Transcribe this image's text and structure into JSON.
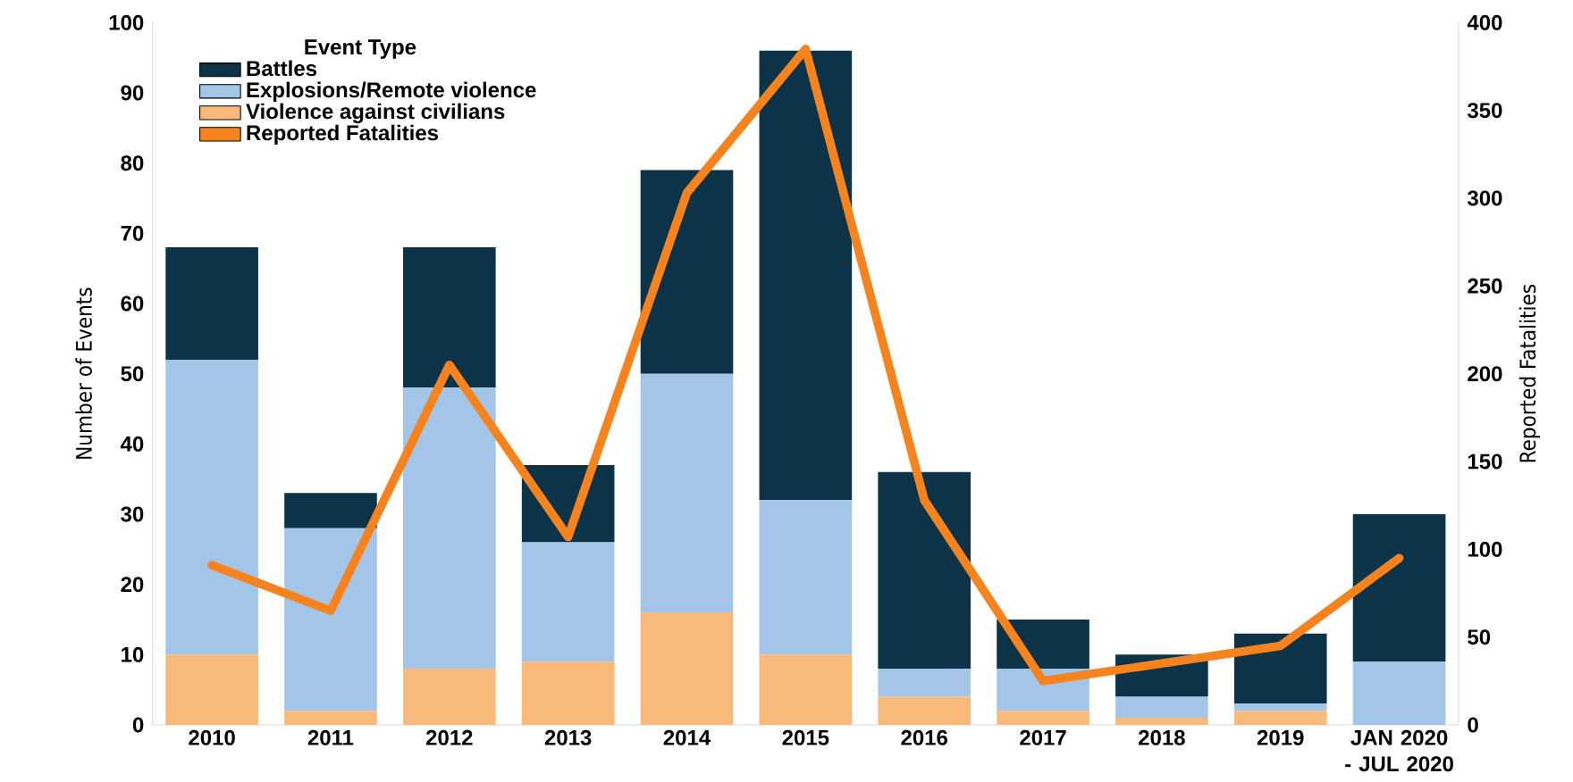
{
  "chart_data": {
    "type": "bar",
    "stacked": true,
    "legend_title": "Event Type",
    "ylabel": "Number of Events",
    "y2label": "Reported Fatalities",
    "categories": [
      "2010",
      "2011",
      "2012",
      "2013",
      "2014",
      "2015",
      "2016",
      "2017",
      "2018",
      "2019",
      "JAN 2020 - JUL 2020"
    ],
    "series": [
      {
        "name": "Violence against civilians",
        "color": "#f9b97a",
        "values": [
          10,
          2,
          8,
          9,
          16,
          10,
          4,
          2,
          1,
          2,
          0
        ]
      },
      {
        "name": "Explosions/Remote violence",
        "color": "#a3c6e8",
        "values": [
          42,
          26,
          40,
          17,
          34,
          22,
          4,
          6,
          3,
          1,
          9
        ]
      },
      {
        "name": "Battles",
        "color": "#0d3349",
        "values": [
          16,
          5,
          20,
          11,
          29,
          64,
          28,
          7,
          6,
          10,
          21
        ]
      },
      {
        "name": "Reported Fatalities",
        "type": "line",
        "axis": "y2",
        "color": "#f7831f",
        "values": [
          91,
          65,
          205,
          107,
          303,
          385,
          128,
          25,
          35,
          45,
          95
        ]
      }
    ],
    "ylim": [
      0,
      100
    ],
    "yticks": [
      0,
      10,
      20,
      30,
      40,
      50,
      60,
      70,
      80,
      90,
      100
    ],
    "y2lim": [
      0,
      400
    ],
    "y2ticks": [
      0,
      50,
      100,
      150,
      200,
      250,
      300,
      350,
      400
    ],
    "legend": "top left",
    "grid": false
  }
}
